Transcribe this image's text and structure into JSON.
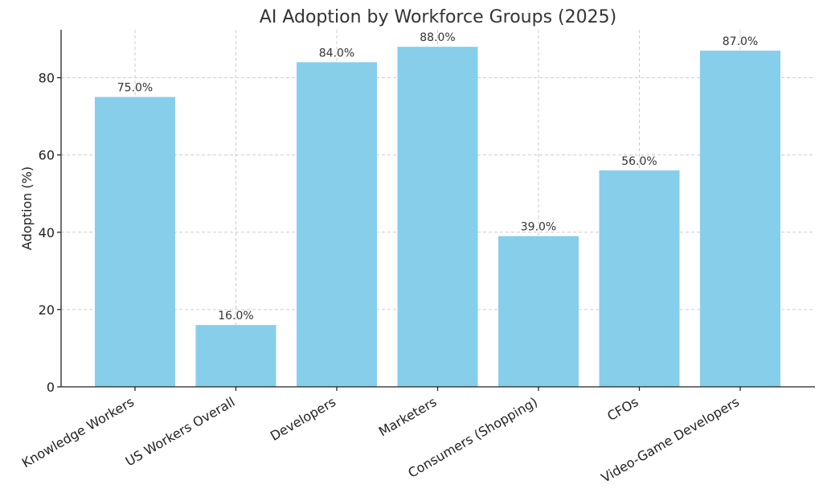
{
  "chart_data": {
    "type": "bar",
    "title": "AI Adoption by Workforce Groups (2025)",
    "xlabel": "",
    "ylabel": "Adoption (%)",
    "categories": [
      "Knowledge Workers",
      "US Workers Overall",
      "Developers",
      "Marketers",
      "Consumers (Shopping)",
      "CFOs",
      "Video-Game Developers"
    ],
    "values": [
      75.0,
      16.0,
      84.0,
      88.0,
      39.0,
      56.0,
      87.0
    ],
    "value_labels": [
      "75.0%",
      "16.0%",
      "84.0%",
      "88.0%",
      "39.0%",
      "56.0%",
      "87.0%"
    ],
    "yticks": [
      0,
      20,
      40,
      60,
      80
    ],
    "ylim": [
      0,
      92.4
    ],
    "grid": true,
    "bar_color": "#87ceeb",
    "legend": "none"
  }
}
